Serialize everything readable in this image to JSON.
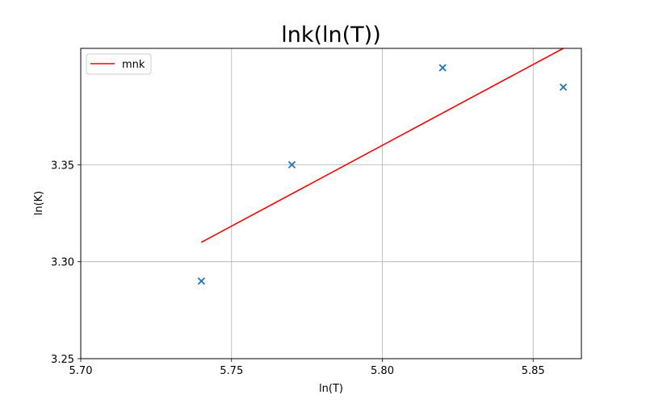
{
  "chart_data": {
    "type": "scatter",
    "title": "lnk(ln(T))",
    "xlabel": "ln(T)",
    "ylabel": "ln(K)",
    "xlim": [
      5.7,
      5.866
    ],
    "ylim": [
      3.25,
      3.41
    ],
    "xticks": [
      5.7,
      5.75,
      5.8,
      5.85
    ],
    "xtick_labels": [
      "5.70",
      "5.75",
      "5.80",
      "5.85"
    ],
    "yticks": [
      3.25,
      3.3,
      3.35
    ],
    "ytick_labels": [
      "3.25",
      "3.30",
      "3.35"
    ],
    "grid": true,
    "legend": {
      "placement": "top-left",
      "entries": [
        "mnk"
      ]
    },
    "series": [
      {
        "type": "scatter",
        "marker": "x",
        "color": "#1f77b4",
        "x": [
          5.74,
          5.77,
          5.82,
          5.86
        ],
        "y": [
          3.29,
          3.35,
          3.4,
          3.39
        ]
      },
      {
        "type": "line",
        "name": "mnk",
        "color": "#ff0000",
        "x": [
          5.74,
          5.86
        ],
        "y": [
          3.31,
          3.41
        ]
      }
    ]
  }
}
